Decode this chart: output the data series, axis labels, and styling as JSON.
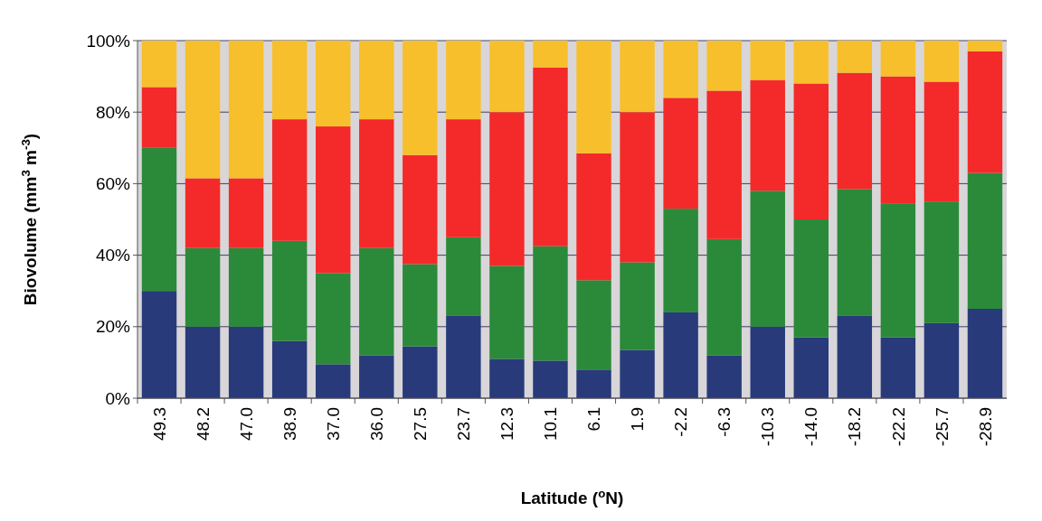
{
  "chart_data": {
    "type": "bar",
    "stacked": true,
    "xlabel": "Latitude ($^{o}$N)",
    "ylabel": "Biovolume (mm$^{3}$ m$^{-3}$)",
    "categories": [
      "49.3",
      "48.2",
      "47.0",
      "38.9",
      "37.0",
      "36.0",
      "27.5",
      "23.7",
      "12.3",
      "10.1",
      "6.1",
      "1.9",
      "-2.2",
      "-6.3",
      "-10.3",
      "-14.0",
      "-18.2",
      "-22.2",
      "-25.7",
      "-28.9"
    ],
    "series": [
      {
        "color": "#283a7a",
        "values": [
          30,
          20,
          20,
          16,
          9.5,
          12,
          14.5,
          23,
          11,
          10.5,
          8,
          13.5,
          24,
          12,
          20,
          17,
          23,
          17,
          21,
          25
        ]
      },
      {
        "color": "#2a8a3a",
        "values": [
          40,
          22,
          22,
          28,
          25.5,
          30,
          23,
          22,
          26,
          32,
          25,
          24.5,
          29,
          32.5,
          38,
          33,
          35.5,
          37.5,
          34,
          38
        ]
      },
      {
        "color": "#f42a2a",
        "values": [
          17,
          19.5,
          19.5,
          34,
          41,
          36,
          30.5,
          33,
          43,
          50,
          35.5,
          42,
          31,
          41.5,
          31,
          38,
          32.5,
          35.5,
          33.5,
          34
        ]
      },
      {
        "color": "#f8bf2c",
        "values": [
          13,
          38.5,
          38.5,
          22,
          24,
          22,
          32,
          22,
          20,
          7.5,
          31.5,
          20,
          16,
          14,
          11,
          12,
          9,
          10,
          11.5,
          3
        ]
      }
    ],
    "ylim": [
      0,
      100
    ],
    "yticks": [
      {
        "value": 0,
        "label": "0%"
      },
      {
        "value": 20,
        "label": "20%"
      },
      {
        "value": 40,
        "label": "40%"
      },
      {
        "value": 60,
        "label": "60%"
      },
      {
        "value": 80,
        "label": "80%"
      },
      {
        "value": 100,
        "label": "100%"
      }
    ],
    "grid": "y"
  }
}
